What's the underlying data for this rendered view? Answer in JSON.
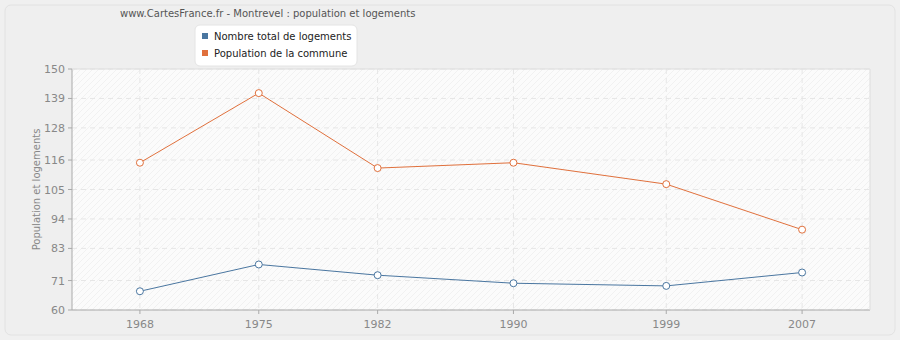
{
  "chart_data": {
    "type": "line",
    "title": "www.CartesFrance.fr - Montrevel : population et logements",
    "y_label": "Population et logements",
    "x": [
      1968,
      1975,
      1982,
      1990,
      1999,
      2007
    ],
    "series": [
      {
        "name": "Nombre total de logements",
        "color": "#4a76a0",
        "marker": "circle",
        "values": [
          67,
          77,
          73,
          70,
          69,
          74
        ]
      },
      {
        "name": "Population de la commune",
        "color": "#e0703c",
        "marker": "circle",
        "values": [
          115,
          141,
          113,
          115,
          107,
          90
        ]
      }
    ],
    "xlim": [
      1964,
      2011
    ],
    "xticks": [
      1968,
      1975,
      1982,
      1990,
      1999,
      2007
    ],
    "ylim": [
      60,
      150
    ],
    "yticks": [
      60,
      71,
      83,
      94,
      105,
      116,
      128,
      139,
      150
    ],
    "grid": true,
    "legend": "top"
  }
}
